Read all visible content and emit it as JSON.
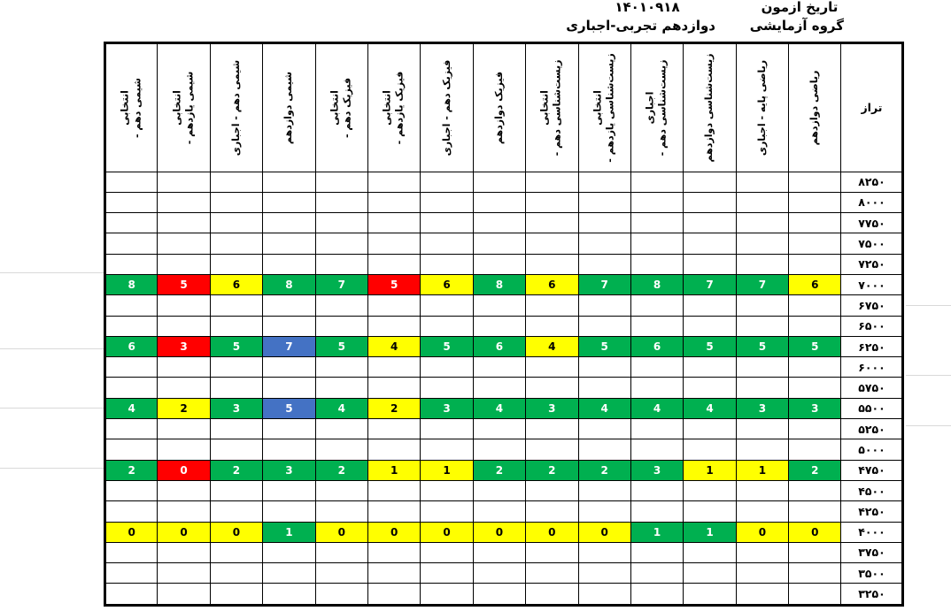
{
  "meta": {
    "exam_date_label": "تاریخ ازمون",
    "exam_date_value": "۱۴۰۱۰۹۱۸",
    "group_label": "گروه آزمایشی",
    "group_value": "دوازدهم تجربی-اجباری"
  },
  "colors": {
    "green": "#00B050",
    "red": "#FF0000",
    "yellow": "#FFFF00",
    "blue": "#4472C4"
  },
  "table": {
    "taraz_header": "تراز",
    "columns": [
      {
        "id": "chem-10-elective",
        "lines": [
          "شیمی دهم -",
          "انتخابی"
        ]
      },
      {
        "id": "chem-11-elective",
        "lines": [
          "شیمی یازدهم -",
          "انتخابی"
        ]
      },
      {
        "id": "chem-10-required",
        "lines": [
          "شیمی دهم - اجباری"
        ]
      },
      {
        "id": "chem-12",
        "lines": [
          "شیمی دوازدهم"
        ]
      },
      {
        "id": "phys-10-elective",
        "lines": [
          "فیزیک دهم -",
          "انتخابی"
        ]
      },
      {
        "id": "phys-11-elective",
        "lines": [
          "فیزیک یازدهم -",
          "انتخابی"
        ]
      },
      {
        "id": "phys-10-required",
        "lines": [
          "فیزیک دهم - اجباری"
        ]
      },
      {
        "id": "phys-12",
        "lines": [
          "فیزیک دوازدهم"
        ]
      },
      {
        "id": "bio-10-elective",
        "lines": [
          "زیست‌شناسی دهم -",
          "انتخابی"
        ]
      },
      {
        "id": "bio-11-elective",
        "lines": [
          "زیست‌شناسی یازدهم -",
          "انتخابی"
        ]
      },
      {
        "id": "bio-10-required",
        "lines": [
          "زیست‌شناسی دهم -",
          "اجباری"
        ]
      },
      {
        "id": "bio-12",
        "lines": [
          "زیست‌شناسی دوازدهم"
        ]
      },
      {
        "id": "math-base-required",
        "lines": [
          "ریاضی پایه - اجباری"
        ]
      },
      {
        "id": "math-12",
        "lines": [
          "ریاضی دوازدهم"
        ]
      }
    ],
    "rows": [
      {
        "taraz": "۸۲۵۰",
        "cells": [
          null,
          null,
          null,
          null,
          null,
          null,
          null,
          null,
          null,
          null,
          null,
          null,
          null,
          null
        ]
      },
      {
        "taraz": "۸۰۰۰",
        "cells": [
          null,
          null,
          null,
          null,
          null,
          null,
          null,
          null,
          null,
          null,
          null,
          null,
          null,
          null
        ]
      },
      {
        "taraz": "۷۷۵۰",
        "cells": [
          null,
          null,
          null,
          null,
          null,
          null,
          null,
          null,
          null,
          null,
          null,
          null,
          null,
          null
        ]
      },
      {
        "taraz": "۷۵۰۰",
        "cells": [
          null,
          null,
          null,
          null,
          null,
          null,
          null,
          null,
          null,
          null,
          null,
          null,
          null,
          null
        ]
      },
      {
        "taraz": "۷۲۵۰",
        "cells": [
          null,
          null,
          null,
          null,
          null,
          null,
          null,
          null,
          null,
          null,
          null,
          null,
          null,
          null
        ]
      },
      {
        "taraz": "۷۰۰۰",
        "cells": [
          {
            "v": "8",
            "c": "green"
          },
          {
            "v": "5",
            "c": "red"
          },
          {
            "v": "6",
            "c": "yellow"
          },
          {
            "v": "8",
            "c": "green"
          },
          {
            "v": "7",
            "c": "green"
          },
          {
            "v": "5",
            "c": "red"
          },
          {
            "v": "6",
            "c": "yellow"
          },
          {
            "v": "8",
            "c": "green"
          },
          {
            "v": "6",
            "c": "yellow"
          },
          {
            "v": "7",
            "c": "green"
          },
          {
            "v": "8",
            "c": "green"
          },
          {
            "v": "7",
            "c": "green"
          },
          {
            "v": "7",
            "c": "green"
          },
          {
            "v": "6",
            "c": "yellow"
          }
        ]
      },
      {
        "taraz": "۶۷۵۰",
        "cells": [
          null,
          null,
          null,
          null,
          null,
          null,
          null,
          null,
          null,
          null,
          null,
          null,
          null,
          null
        ]
      },
      {
        "taraz": "۶۵۰۰",
        "cells": [
          null,
          null,
          null,
          null,
          null,
          null,
          null,
          null,
          null,
          null,
          null,
          null,
          null,
          null
        ]
      },
      {
        "taraz": "۶۲۵۰",
        "cells": [
          {
            "v": "6",
            "c": "green"
          },
          {
            "v": "3",
            "c": "red"
          },
          {
            "v": "5",
            "c": "green"
          },
          {
            "v": "7",
            "c": "blue"
          },
          {
            "v": "5",
            "c": "green"
          },
          {
            "v": "4",
            "c": "yellow"
          },
          {
            "v": "5",
            "c": "green"
          },
          {
            "v": "6",
            "c": "green"
          },
          {
            "v": "4",
            "c": "yellow"
          },
          {
            "v": "5",
            "c": "green"
          },
          {
            "v": "6",
            "c": "green"
          },
          {
            "v": "5",
            "c": "green"
          },
          {
            "v": "5",
            "c": "green"
          },
          {
            "v": "5",
            "c": "green"
          }
        ]
      },
      {
        "taraz": "۶۰۰۰",
        "cells": [
          null,
          null,
          null,
          null,
          null,
          null,
          null,
          null,
          null,
          null,
          null,
          null,
          null,
          null
        ]
      },
      {
        "taraz": "۵۷۵۰",
        "cells": [
          null,
          null,
          null,
          null,
          null,
          null,
          null,
          null,
          null,
          null,
          null,
          null,
          null,
          null
        ]
      },
      {
        "taraz": "۵۵۰۰",
        "cells": [
          {
            "v": "4",
            "c": "green"
          },
          {
            "v": "2",
            "c": "yellow"
          },
          {
            "v": "3",
            "c": "green"
          },
          {
            "v": "5",
            "c": "blue"
          },
          {
            "v": "4",
            "c": "green"
          },
          {
            "v": "2",
            "c": "yellow"
          },
          {
            "v": "3",
            "c": "green"
          },
          {
            "v": "4",
            "c": "green"
          },
          {
            "v": "3",
            "c": "green"
          },
          {
            "v": "4",
            "c": "green"
          },
          {
            "v": "4",
            "c": "green"
          },
          {
            "v": "4",
            "c": "green"
          },
          {
            "v": "3",
            "c": "green"
          },
          {
            "v": "3",
            "c": "green"
          }
        ]
      },
      {
        "taraz": "۵۲۵۰",
        "cells": [
          null,
          null,
          null,
          null,
          null,
          null,
          null,
          null,
          null,
          null,
          null,
          null,
          null,
          null
        ]
      },
      {
        "taraz": "۵۰۰۰",
        "cells": [
          null,
          null,
          null,
          null,
          null,
          null,
          null,
          null,
          null,
          null,
          null,
          null,
          null,
          null
        ]
      },
      {
        "taraz": "۴۷۵۰",
        "cells": [
          {
            "v": "2",
            "c": "green"
          },
          {
            "v": "0",
            "c": "red"
          },
          {
            "v": "2",
            "c": "green"
          },
          {
            "v": "3",
            "c": "green"
          },
          {
            "v": "2",
            "c": "green"
          },
          {
            "v": "1",
            "c": "yellow"
          },
          {
            "v": "1",
            "c": "yellow"
          },
          {
            "v": "2",
            "c": "green"
          },
          {
            "v": "2",
            "c": "green"
          },
          {
            "v": "2",
            "c": "green"
          },
          {
            "v": "3",
            "c": "green"
          },
          {
            "v": "1",
            "c": "yellow"
          },
          {
            "v": "1",
            "c": "yellow"
          },
          {
            "v": "2",
            "c": "green"
          }
        ]
      },
      {
        "taraz": "۴۵۰۰",
        "cells": [
          null,
          null,
          null,
          null,
          null,
          null,
          null,
          null,
          null,
          null,
          null,
          null,
          null,
          null
        ]
      },
      {
        "taraz": "۴۲۵۰",
        "cells": [
          null,
          null,
          null,
          null,
          null,
          null,
          null,
          null,
          null,
          null,
          null,
          null,
          null,
          null
        ]
      },
      {
        "taraz": "۴۰۰۰",
        "cells": [
          {
            "v": "0",
            "c": "yellow"
          },
          {
            "v": "0",
            "c": "yellow"
          },
          {
            "v": "0",
            "c": "yellow"
          },
          {
            "v": "1",
            "c": "green"
          },
          {
            "v": "0",
            "c": "yellow"
          },
          {
            "v": "0",
            "c": "yellow"
          },
          {
            "v": "0",
            "c": "yellow"
          },
          {
            "v": "0",
            "c": "yellow"
          },
          {
            "v": "0",
            "c": "yellow"
          },
          {
            "v": "0",
            "c": "yellow"
          },
          {
            "v": "1",
            "c": "green"
          },
          {
            "v": "1",
            "c": "green"
          },
          {
            "v": "0",
            "c": "yellow"
          },
          {
            "v": "0",
            "c": "yellow"
          }
        ]
      },
      {
        "taraz": "۳۷۵۰",
        "cells": [
          null,
          null,
          null,
          null,
          null,
          null,
          null,
          null,
          null,
          null,
          null,
          null,
          null,
          null
        ]
      },
      {
        "taraz": "۳۵۰۰",
        "cells": [
          null,
          null,
          null,
          null,
          null,
          null,
          null,
          null,
          null,
          null,
          null,
          null,
          null,
          null
        ]
      },
      {
        "taraz": "۳۲۵۰",
        "cells": [
          null,
          null,
          null,
          null,
          null,
          null,
          null,
          null,
          null,
          null,
          null,
          null,
          null,
          null
        ]
      }
    ]
  }
}
